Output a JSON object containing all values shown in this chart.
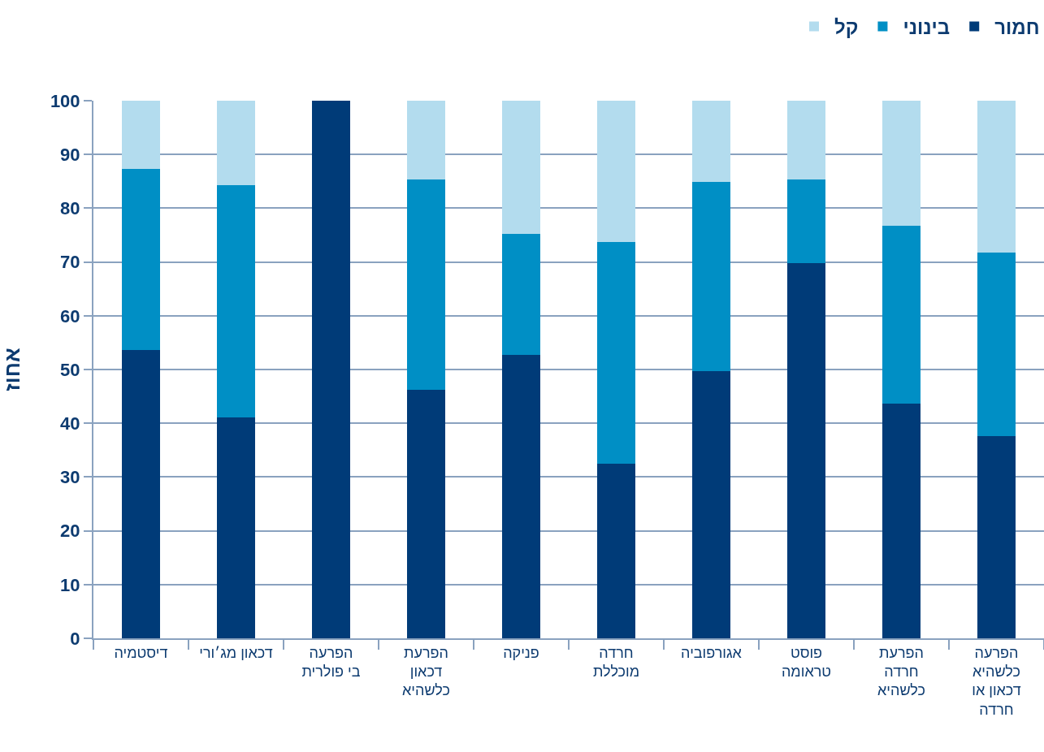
{
  "chart_data": {
    "type": "bar",
    "stacked": true,
    "categories": [
      "דיסטמיה",
      "דכאון מג׳ורי",
      "הפרעה\nבי פולרית",
      "הפרעת\nדכאון\nכלשהיא",
      "פניקה",
      "חרדה\nמוכללת",
      "אגורפוביה",
      "פוסט\nטראומה",
      "הפרעת\nחרדה\nכלשהיא",
      "הפרעה\nכלשהיא\nדכאון או\nחרדה"
    ],
    "ylabel": "אחוז",
    "series": [
      {
        "name": "חמור",
        "color": "#003b78",
        "values": [
          53.6,
          41.1,
          100,
          46.2,
          52.7,
          32.5,
          49.7,
          69.8,
          43.7,
          37.6
        ]
      },
      {
        "name": "בינוני",
        "color": "#008fc5",
        "values": [
          33.7,
          43.2,
          0,
          39.1,
          22.5,
          41.2,
          35.2,
          15.5,
          33.0,
          34.2
        ]
      },
      {
        "name": "קל",
        "color": "#b3dcee",
        "values": [
          12.7,
          15.7,
          0,
          14.7,
          24.8,
          26.3,
          15.1,
          14.7,
          23.3,
          28.2
        ]
      }
    ],
    "ylim": [
      0,
      100
    ],
    "yticks": [
      0,
      10,
      20,
      30,
      40,
      50,
      60,
      70,
      80,
      90,
      100
    ],
    "grid": "y",
    "legend": "top right"
  }
}
